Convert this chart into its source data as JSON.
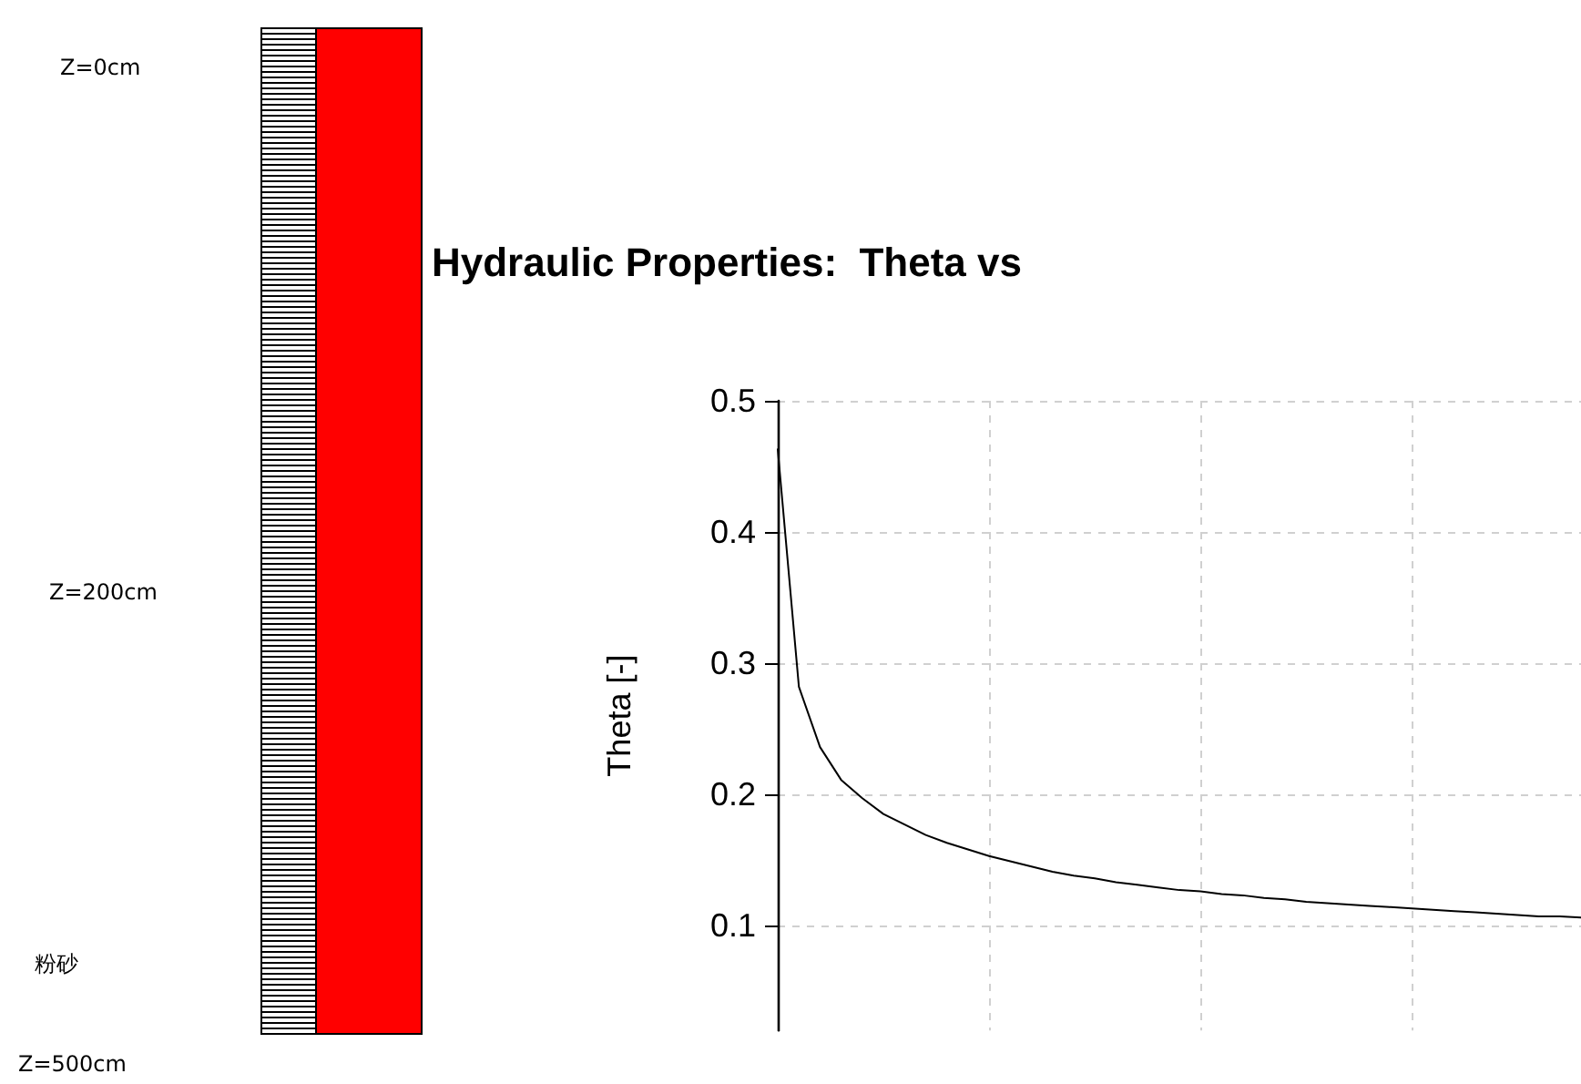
{
  "chart_data": {
    "type": "line",
    "title": "Hydraulic Properties:  Theta vs",
    "ylabel": "Theta [-]",
    "annotations": [
      "Z=0cm",
      "Z=200cm",
      "粉砂",
      "Z=500cm"
    ],
    "categories": [
      null,
      null,
      null,
      null,
      null,
      null,
      null,
      null,
      null,
      null,
      null,
      null,
      null,
      null,
      null,
      null,
      null,
      null,
      null,
      null,
      null,
      null,
      null,
      null,
      null,
      null,
      null,
      null,
      null,
      null,
      null,
      null,
      null,
      null,
      null,
      null,
      null,
      null,
      null
    ],
    "series": [
      {
        "color": "#000000",
        "values": [
          0.463,
          0.282,
          0.236,
          0.211,
          0.197,
          0.185,
          0.177,
          0.169,
          0.163,
          0.158,
          0.153,
          0.149,
          0.145,
          0.141,
          0.138,
          0.136,
          0.133,
          0.131,
          0.129,
          0.127,
          0.126,
          0.124,
          0.123,
          0.121,
          0.12,
          0.118,
          0.117,
          0.116,
          0.115,
          0.114,
          0.113,
          0.112,
          0.111,
          0.11,
          0.109,
          0.108,
          0.107,
          0.107,
          0.106
        ]
      }
    ],
    "ylim": [
      0.02,
      0.5
    ],
    "yticks": [
      0.1,
      0.2,
      0.3,
      0.4,
      0.5
    ],
    "tick_labels": "y",
    "grid": true,
    "marker": "none",
    "line_style": "solid"
  }
}
